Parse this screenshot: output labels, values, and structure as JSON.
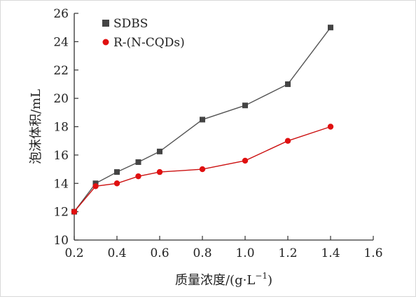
{
  "chart_data": {
    "type": "line",
    "title": "",
    "xlabel": "质量浓度/(g·L",
    "xlabel_sup": "−1",
    "xlabel_suffix": ")",
    "ylabel": "泡沫体积/mL",
    "xlim": [
      0.2,
      1.6
    ],
    "ylim": [
      10,
      26
    ],
    "x_ticks": [
      "0.2",
      "0.4",
      "0.6",
      "0.8",
      "1.0",
      "1.2",
      "1.4",
      "1.6"
    ],
    "y_ticks": [
      "10",
      "12",
      "14",
      "16",
      "18",
      "20",
      "22",
      "24",
      "26"
    ],
    "grid": false,
    "legend_position": "top-left",
    "series": [
      {
        "name": "SDBS",
        "marker": "square",
        "line_color": "#555555",
        "marker_color": "#444444",
        "x": [
          0.2,
          0.3,
          0.4,
          0.5,
          0.6,
          0.8,
          1.0,
          1.2,
          1.4
        ],
        "y": [
          12,
          14,
          14.8,
          15.5,
          16.25,
          18.5,
          19.5,
          21,
          25
        ]
      },
      {
        "name": "R-(N-CQDs)",
        "marker": "circle",
        "line_color": "#cc1111",
        "marker_color": "#e01010",
        "x": [
          0.2,
          0.3,
          0.4,
          0.5,
          0.6,
          0.8,
          1.0,
          1.2,
          1.4
        ],
        "y": [
          12,
          13.8,
          14,
          14.5,
          14.8,
          15,
          15.6,
          17,
          18
        ]
      }
    ]
  }
}
